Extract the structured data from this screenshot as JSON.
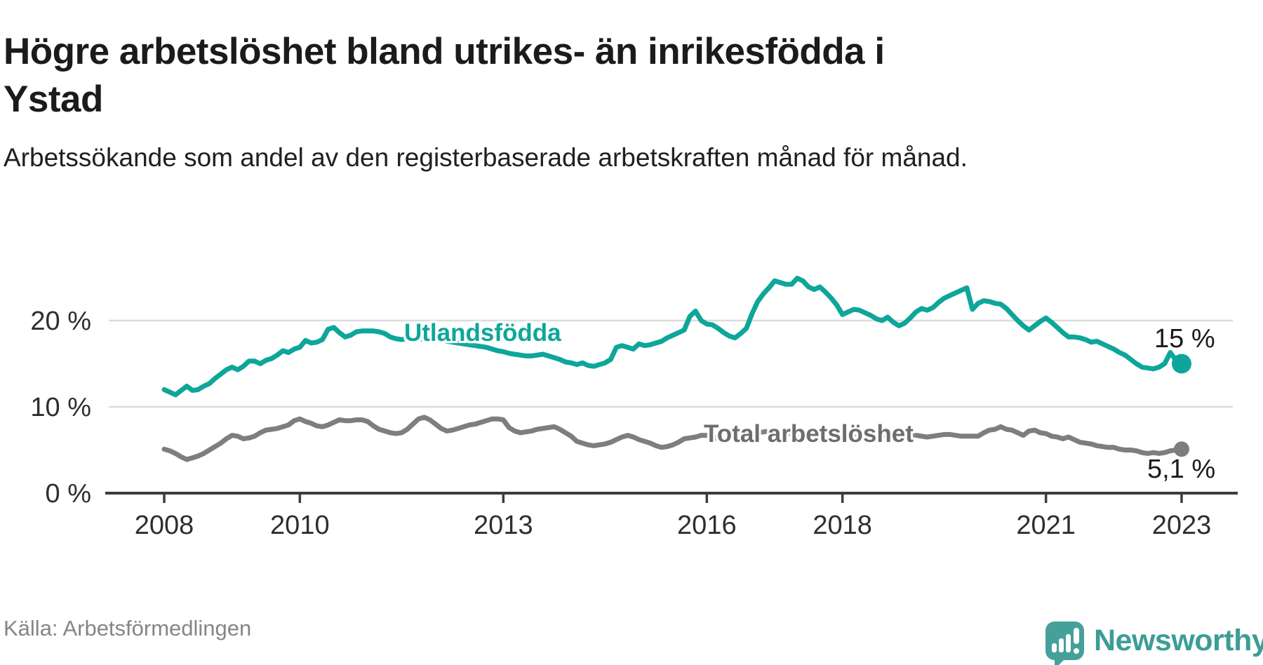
{
  "header": {
    "title_line1": "Högre arbetslöshet bland utrikes- än inrikesfödda i",
    "title_line2": "Ystad",
    "subtitle": "Arbetssökande som andel av den registerbaserade arbetskraften månad för månad."
  },
  "chart_data": {
    "type": "line",
    "unit": "percent of registered labour force",
    "frequency": "monthly",
    "x_start": "2008-01",
    "x_end": "2023-01",
    "x_tick_years": [
      2008,
      2010,
      2013,
      2016,
      2018,
      2021,
      2023
    ],
    "y_ticks": [
      {
        "value": 0,
        "label": "0 %"
      },
      {
        "value": 10,
        "label": "10 %"
      },
      {
        "value": 20,
        "label": "20 %"
      }
    ],
    "y_max": 26,
    "grid": true,
    "legend_position": "inline-labels",
    "series": [
      {
        "name": "Utlandsfödda",
        "inline_label": "Utlandsfödda",
        "end_label": "15 %",
        "end_value": 15.0,
        "color": "#0ea69a",
        "values": [
          12.0,
          11.7,
          11.4,
          11.9,
          12.4,
          11.9,
          12.0,
          12.4,
          12.7,
          13.3,
          13.8,
          14.3,
          14.6,
          14.3,
          14.7,
          15.3,
          15.3,
          15.0,
          15.4,
          15.6,
          16.0,
          16.5,
          16.3,
          16.7,
          16.9,
          17.7,
          17.4,
          17.5,
          17.8,
          19.0,
          19.2,
          18.6,
          18.1,
          18.3,
          18.7,
          18.8,
          18.8,
          18.8,
          18.7,
          18.5,
          18.1,
          17.9,
          17.8,
          17.9,
          18.0,
          17.9,
          17.8,
          17.9,
          17.9,
          17.8,
          17.6,
          17.5,
          17.4,
          17.3,
          17.2,
          17.1,
          17.0,
          16.9,
          16.7,
          16.5,
          16.4,
          16.2,
          16.1,
          16.0,
          15.9,
          15.9,
          16.0,
          16.1,
          15.9,
          15.7,
          15.5,
          15.2,
          15.1,
          14.9,
          15.1,
          14.8,
          14.7,
          14.9,
          15.1,
          15.5,
          16.9,
          17.1,
          16.9,
          16.7,
          17.3,
          17.1,
          17.2,
          17.4,
          17.6,
          18.0,
          18.3,
          18.6,
          18.9,
          20.5,
          21.1,
          20.0,
          19.6,
          19.5,
          19.1,
          18.6,
          18.2,
          18.0,
          18.5,
          19.1,
          20.8,
          22.2,
          23.1,
          23.8,
          24.6,
          24.4,
          24.2,
          24.2,
          24.9,
          24.6,
          23.9,
          23.6,
          23.9,
          23.3,
          22.6,
          21.8,
          20.7,
          21.0,
          21.3,
          21.2,
          20.9,
          20.6,
          20.2,
          20.0,
          20.4,
          19.8,
          19.4,
          19.7,
          20.3,
          21.0,
          21.4,
          21.2,
          21.5,
          22.1,
          22.6,
          22.9,
          23.2,
          23.5,
          23.8,
          21.3,
          22.0,
          22.3,
          22.2,
          22.0,
          21.9,
          21.4,
          20.7,
          20.0,
          19.4,
          18.9,
          19.4,
          19.9,
          20.3,
          19.8,
          19.2,
          18.6,
          18.1,
          18.1,
          18.0,
          17.8,
          17.5,
          17.6,
          17.3,
          17.0,
          16.7,
          16.3,
          16.0,
          15.5,
          15.0,
          14.6,
          14.5,
          14.4,
          14.6,
          15.0,
          16.3,
          15.4,
          15.0
        ]
      },
      {
        "name": "Total arbetslöshet",
        "inline_label": "Total arbetslöshet",
        "end_label": "5,1 %",
        "end_value": 5.1,
        "color": "#7d7d82",
        "label_color": "#6d6d72",
        "values": [
          5.1,
          4.9,
          4.6,
          4.2,
          3.9,
          4.1,
          4.3,
          4.6,
          5.0,
          5.4,
          5.8,
          6.3,
          6.7,
          6.6,
          6.3,
          6.4,
          6.6,
          7.0,
          7.3,
          7.4,
          7.5,
          7.7,
          7.9,
          8.4,
          8.6,
          8.3,
          8.1,
          7.8,
          7.7,
          7.9,
          8.2,
          8.5,
          8.4,
          8.4,
          8.5,
          8.5,
          8.3,
          7.8,
          7.4,
          7.2,
          7.0,
          6.9,
          7.0,
          7.4,
          8.0,
          8.6,
          8.8,
          8.5,
          8.0,
          7.5,
          7.2,
          7.3,
          7.5,
          7.7,
          7.9,
          8.0,
          8.2,
          8.4,
          8.6,
          8.6,
          8.5,
          7.6,
          7.2,
          7.0,
          7.1,
          7.2,
          7.4,
          7.5,
          7.6,
          7.7,
          7.4,
          7.0,
          6.6,
          6.0,
          5.8,
          5.6,
          5.5,
          5.6,
          5.7,
          5.9,
          6.2,
          6.5,
          6.7,
          6.5,
          6.2,
          6.0,
          5.8,
          5.5,
          5.3,
          5.4,
          5.6,
          5.9,
          6.3,
          6.4,
          6.5,
          6.7,
          6.7,
          6.5,
          6.3,
          6.2,
          6.3,
          6.5,
          6.7,
          6.8,
          6.9,
          7.0,
          7.1,
          7.2,
          7.2,
          7.1,
          7.0,
          6.9,
          6.9,
          7.0,
          7.1,
          7.1,
          7.0,
          6.9,
          7.0,
          7.1,
          7.0,
          6.9,
          6.7,
          6.6,
          6.6,
          6.7,
          6.8,
          6.8,
          6.7,
          6.6,
          6.7,
          6.8,
          6.8,
          6.7,
          6.6,
          6.5,
          6.6,
          6.7,
          6.8,
          6.8,
          6.7,
          6.6,
          6.6,
          6.6,
          6.6,
          7.0,
          7.3,
          7.4,
          7.7,
          7.4,
          7.3,
          7.0,
          6.7,
          7.2,
          7.3,
          7.0,
          6.9,
          6.6,
          6.5,
          6.3,
          6.5,
          6.2,
          5.9,
          5.8,
          5.7,
          5.5,
          5.4,
          5.3,
          5.3,
          5.1,
          5.0,
          5.0,
          4.9,
          4.7,
          4.6,
          4.7,
          4.6,
          4.7,
          4.9,
          5.0,
          5.1
        ]
      }
    ]
  },
  "footer": {
    "source": "Källa: Arbetsförmedlingen",
    "brand": "Newsworthy"
  },
  "colors": {
    "accent_teal": "#0ea69a",
    "line_gray": "#7d7d82",
    "gray_label": "#6d6d72",
    "axis": "#3c3c3c",
    "grid": "#dcdcdc",
    "title_text": "#1b1b1b",
    "tick_text": "#2e2e2e",
    "source_text": "#85858a",
    "brand_teal": "#3c9d97",
    "logo_teal": "#45a09a"
  }
}
